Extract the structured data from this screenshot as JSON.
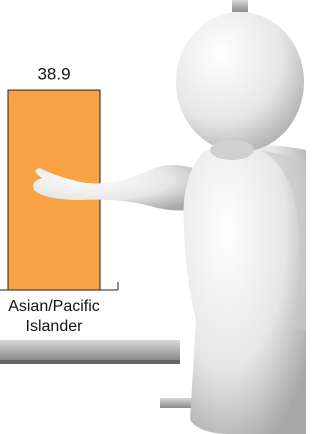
{
  "chart_data": {
    "type": "bar",
    "categories": [
      "Asian/Pacific Islander"
    ],
    "values": [
      38.9
    ],
    "value_labels": [
      "38.9"
    ],
    "color": "#f7a243",
    "ylim": [
      0,
      40
    ]
  }
}
